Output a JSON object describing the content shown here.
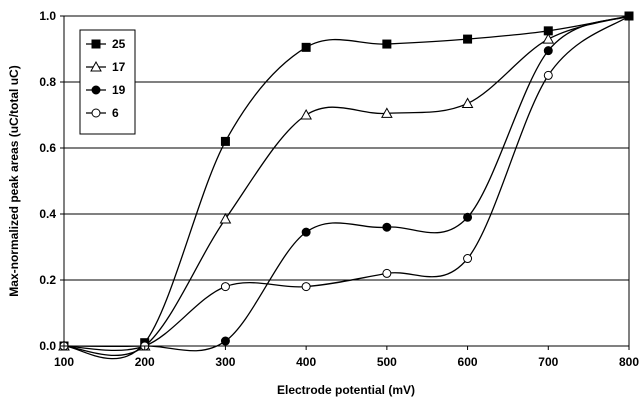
{
  "chart_data": {
    "type": "line",
    "title": "",
    "xlabel": "Electrode potential (mV)",
    "ylabel": "Max-normalized peak areas (uC/total uC)",
    "xlim": [
      100,
      800
    ],
    "ylim": [
      0.0,
      1.0
    ],
    "x_ticks": [
      "100",
      "200",
      "300",
      "400",
      "500",
      "600",
      "700",
      "800"
    ],
    "y_ticks": [
      "0.0",
      "0.2",
      "0.4",
      "0.6",
      "0.8",
      "1.0"
    ],
    "grid": "horizontal",
    "legend_position": "top-left",
    "x": [
      100,
      200,
      300,
      400,
      500,
      600,
      700,
      800
    ],
    "series": [
      {
        "name": "25",
        "marker": "square",
        "values": [
          0.0,
          0.01,
          0.62,
          0.905,
          0.915,
          0.93,
          0.955,
          1.0
        ]
      },
      {
        "name": "17",
        "marker": "triangle-open",
        "values": [
          0.0,
          0.0,
          0.385,
          0.7,
          0.705,
          0.735,
          0.93,
          1.0
        ]
      },
      {
        "name": "19",
        "marker": "circle",
        "values": [
          0.0,
          0.0,
          0.015,
          0.345,
          0.36,
          0.39,
          0.895,
          1.0
        ]
      },
      {
        "name": "6",
        "marker": "circle-open",
        "values": [
          0.0,
          0.0,
          0.18,
          0.18,
          0.22,
          0.265,
          0.82,
          1.0
        ]
      }
    ]
  }
}
